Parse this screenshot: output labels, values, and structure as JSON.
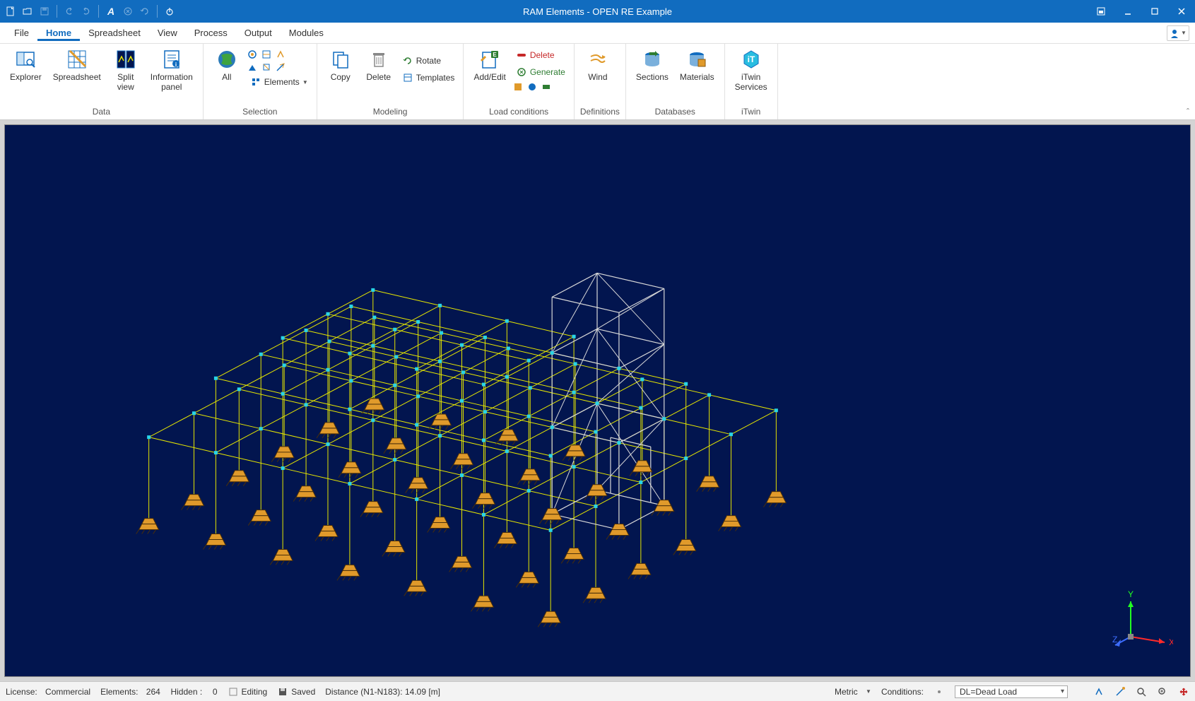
{
  "window": {
    "title": "RAM Elements - OPEN RE Example"
  },
  "menu": {
    "items": [
      "File",
      "Home",
      "Spreadsheet",
      "View",
      "Process",
      "Output",
      "Modules"
    ],
    "active_index": 1
  },
  "ribbon": {
    "groups": {
      "data": {
        "label": "Data",
        "explorer": "Explorer",
        "spreadsheet": "Spreadsheet",
        "split_view": "Split\nview",
        "info_panel": "Information\npanel"
      },
      "selection": {
        "label": "Selection",
        "all": "All",
        "elements": "Elements"
      },
      "modeling": {
        "label": "Modeling",
        "copy": "Copy",
        "delete": "Delete",
        "rotate": "Rotate",
        "templates": "Templates"
      },
      "load_conditions": {
        "label": "Load conditions",
        "add_edit": "Add/Edit",
        "delete": "Delete",
        "generate": "Generate"
      },
      "definitions": {
        "label": "Definitions",
        "wind": "Wind"
      },
      "databases": {
        "label": "Databases",
        "sections": "Sections",
        "materials": "Materials"
      },
      "itwin": {
        "label": "iTwin",
        "services": "iTwin\nServices"
      }
    }
  },
  "viewport": {
    "bg": "#02154f",
    "model_color": "#e6e600",
    "node_color": "#28d5e8",
    "wall_color": "#d8d8d8",
    "support_fill": "#e09a2b",
    "support_stroke": "#4a2f0a",
    "triad": {
      "x_color": "#ff2a2a",
      "y_color": "#22ff22",
      "z_color": "#3d6dff",
      "x_label": "X",
      "y_label": "Y",
      "z_label": "Z"
    }
  },
  "status": {
    "license_label": "License:",
    "license_value": "Commercial",
    "elements_label": "Elements:",
    "elements_value": "264",
    "hidden_label": "Hidden :",
    "hidden_value": "0",
    "mode": "Editing",
    "saved": "Saved",
    "distance": "Distance (N1-N183): 14.09 [m]",
    "units": "Metric",
    "conditions_label": "Conditions:",
    "conditions_value": "DL=Dead Load"
  }
}
